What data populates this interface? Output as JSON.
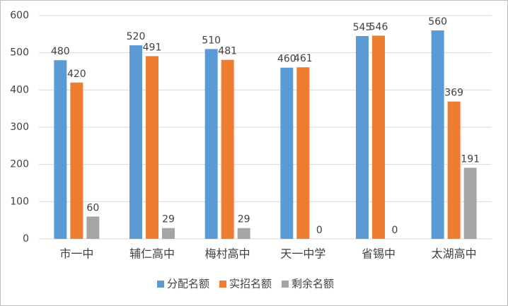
{
  "chart_data": {
    "type": "bar",
    "categories": [
      "市一中",
      "辅仁高中",
      "梅村高中",
      "天一中学",
      "省锡中",
      "太湖高中"
    ],
    "series": [
      {
        "name": "分配名额",
        "color": "#5b9bd5",
        "values": [
          480,
          520,
          510,
          460,
          545,
          560
        ]
      },
      {
        "name": "实招名额",
        "color": "#ed7d31",
        "values": [
          420,
          491,
          481,
          461,
          546,
          369
        ]
      },
      {
        "name": "剩余名额",
        "color": "#a5a5a5",
        "values": [
          60,
          29,
          29,
          0,
          0,
          191
        ]
      }
    ],
    "ylim": [
      0,
      600
    ],
    "yticks": [
      0,
      100,
      200,
      300,
      400,
      500,
      600
    ],
    "grid": true,
    "legend": "bottom"
  }
}
